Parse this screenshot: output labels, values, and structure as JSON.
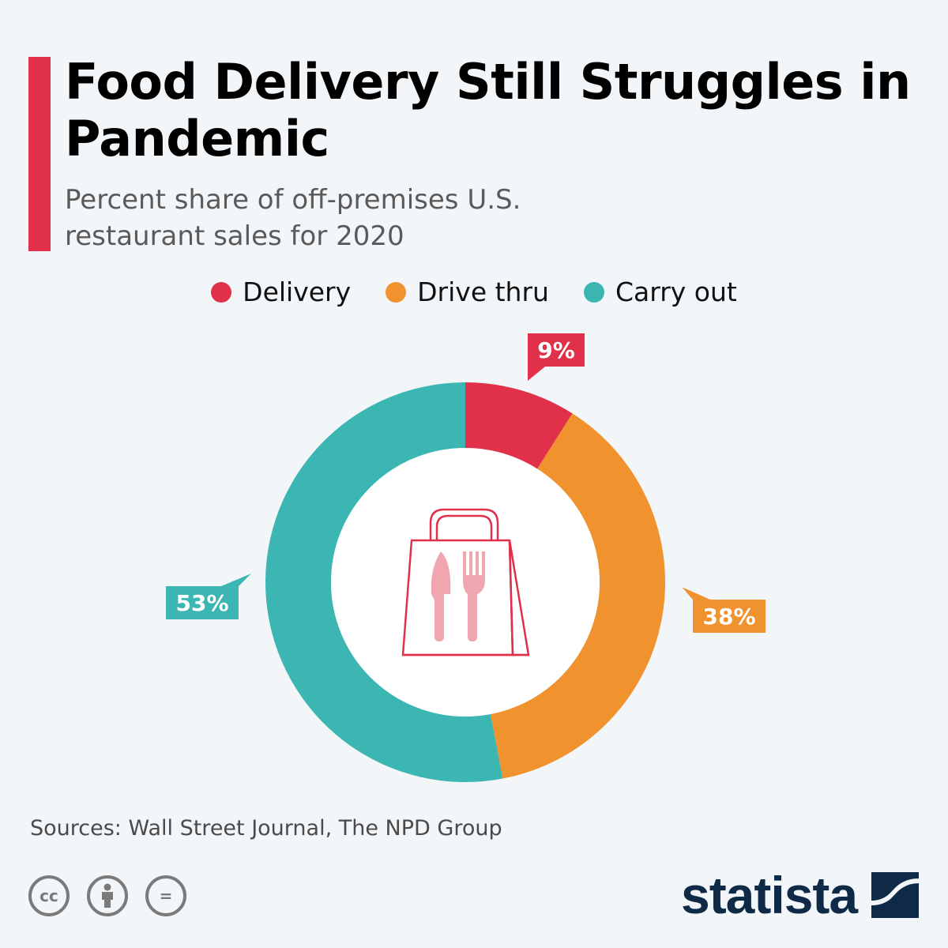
{
  "header": {
    "title": "Food Delivery Still Struggles in Pandemic",
    "subtitle": "Percent share of off-premises U.S. restaurant sales for 2020"
  },
  "colors": {
    "accent": "#e0304a",
    "delivery": "#e0304a",
    "drive_thru": "#f0922e",
    "carry_out": "#3bb6b3",
    "brand": "#0f2a47"
  },
  "chart_data": {
    "type": "pie",
    "donut": true,
    "categories": [
      "Delivery",
      "Drive thru",
      "Carry out"
    ],
    "values": [
      9,
      38,
      53
    ],
    "value_labels": [
      "9%",
      "38%",
      "53%"
    ],
    "unit": "%",
    "legend_position": "top-center",
    "center_icon": "food-bag-icon"
  },
  "footer": {
    "source": "Sources: Wall Street Journal, The NPD Group",
    "license_icons": [
      "cc-icon",
      "attribution-icon",
      "no-derivatives-icon"
    ],
    "license_glyphs": [
      "cc",
      "",
      "="
    ],
    "brand": "statista"
  }
}
